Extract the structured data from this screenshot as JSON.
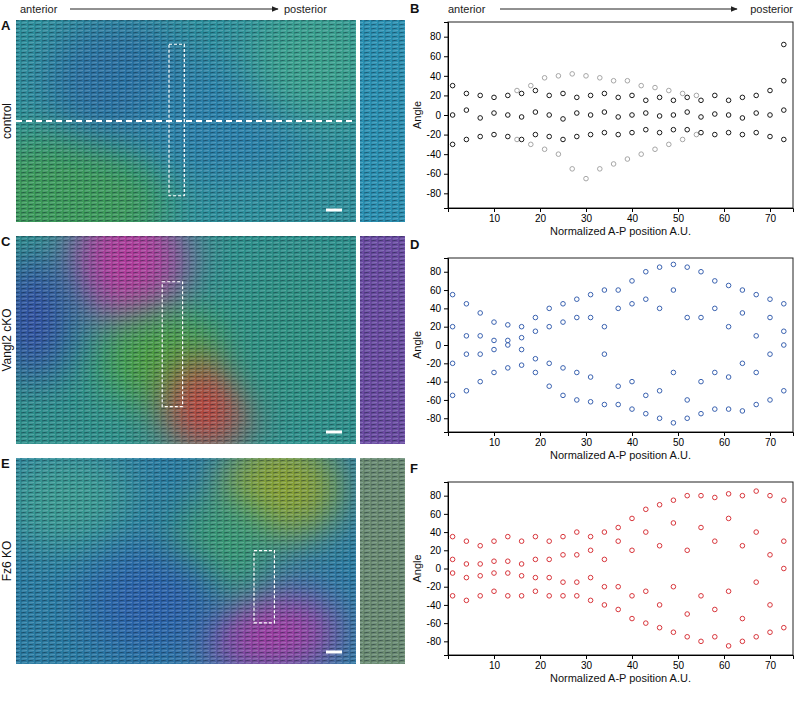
{
  "image_header": {
    "start": "anterior",
    "end": "posterior"
  },
  "image_panels": [
    {
      "panel_label": "A",
      "label": "control"
    },
    {
      "panel_label": "C",
      "label": "Vangl2 cKO"
    },
    {
      "panel_label": "E",
      "label": "Fz6 KO"
    }
  ],
  "chart_data": [
    {
      "type": "scatter",
      "panel_label": "B",
      "annotations": [
        "anterior",
        "posterior"
      ],
      "x_label": "Normalized A-P position A.U.",
      "y_label": "Angle",
      "xlim": [
        0,
        75
      ],
      "xticks": [
        10,
        20,
        30,
        40,
        50,
        60,
        70
      ],
      "ylim": [
        -95,
        95
      ],
      "yticks": [
        -80,
        -60,
        -40,
        -20,
        0,
        20,
        40,
        60,
        80
      ],
      "series": [
        {
          "color": "#a6a6a6",
          "x": [
            15,
            18,
            21,
            24,
            27,
            30,
            33,
            36,
            39,
            42,
            45,
            48,
            51,
            54,
            15,
            18,
            21,
            24,
            27,
            30,
            33,
            36,
            39,
            42,
            45,
            48,
            51,
            54
          ],
          "values": [
            25,
            30,
            38,
            40,
            42,
            40,
            38,
            35,
            35,
            30,
            28,
            25,
            22,
            20,
            -25,
            -30,
            -35,
            -40,
            -55,
            -65,
            -55,
            -50,
            -45,
            -40,
            -35,
            -30,
            -25,
            -20
          ]
        },
        {
          "color": "#1a1a1a",
          "x": [
            1,
            4,
            7,
            10,
            13,
            16,
            19,
            22,
            25,
            28,
            31,
            34,
            37,
            40,
            43,
            46,
            49,
            52,
            55,
            58,
            61,
            64,
            67,
            70,
            73,
            1,
            4,
            7,
            10,
            13,
            16,
            19,
            22,
            25,
            28,
            31,
            34,
            37,
            40,
            43,
            46,
            49,
            52,
            55,
            58,
            61,
            64,
            67,
            70,
            73,
            1,
            4,
            7,
            10,
            13,
            16,
            19,
            22,
            25,
            28,
            31,
            34,
            37,
            40,
            43,
            46,
            49,
            52,
            55,
            58,
            61,
            64,
            67,
            70,
            73,
            73
          ],
          "values": [
            30,
            22,
            20,
            18,
            20,
            22,
            25,
            20,
            22,
            18,
            20,
            22,
            18,
            20,
            15,
            18,
            15,
            18,
            15,
            20,
            15,
            18,
            20,
            25,
            35,
            -30,
            -25,
            -22,
            -20,
            -22,
            -25,
            -20,
            -22,
            -25,
            -22,
            -20,
            -18,
            -20,
            -18,
            -15,
            -18,
            -15,
            -15,
            -18,
            -20,
            -18,
            -20,
            -18,
            -22,
            -25,
            0,
            5,
            -3,
            2,
            0,
            -2,
            3,
            0,
            -4,
            2,
            0,
            3,
            -2,
            0,
            2,
            -1,
            0,
            3,
            -2,
            1,
            0,
            -3,
            2,
            0,
            5,
            72
          ]
        }
      ]
    },
    {
      "type": "scatter",
      "panel_label": "D",
      "x_label": "Normalized A-P position A.U.",
      "y_label": "Angle",
      "xlim": [
        0,
        75
      ],
      "xticks": [
        10,
        20,
        30,
        40,
        50,
        60,
        70
      ],
      "ylim": [
        -95,
        95
      ],
      "yticks": [
        -80,
        -60,
        -40,
        -20,
        0,
        20,
        40,
        60,
        80
      ],
      "series": [
        {
          "color": "#3a62b0",
          "x": [
            1,
            4,
            7,
            10,
            13,
            16,
            19,
            22,
            25,
            28,
            31,
            34,
            37,
            40,
            43,
            46,
            49,
            52,
            55,
            58,
            61,
            64,
            67,
            70,
            73,
            1,
            4,
            7,
            10,
            13,
            16,
            19,
            22,
            25,
            28,
            31,
            34,
            37,
            40,
            43,
            46,
            49,
            52,
            55,
            58,
            61,
            64,
            67,
            70,
            73,
            1,
            4,
            7,
            10,
            13,
            16,
            19,
            22,
            25,
            28,
            31,
            34,
            37,
            40,
            43,
            46,
            49,
            52,
            55,
            58,
            61,
            64,
            67,
            70,
            73,
            1,
            4,
            7,
            10,
            13,
            16,
            19,
            22,
            25,
            28,
            31,
            34,
            37,
            40,
            43,
            46,
            49,
            52,
            55,
            58,
            61,
            64,
            67,
            70,
            73
          ],
          "values": [
            55,
            45,
            35,
            25,
            22,
            20,
            30,
            40,
            45,
            50,
            55,
            60,
            60,
            70,
            80,
            85,
            88,
            85,
            80,
            70,
            65,
            60,
            55,
            50,
            45,
            -55,
            -50,
            -40,
            -30,
            -25,
            -22,
            -30,
            -45,
            -55,
            -60,
            -62,
            -65,
            -65,
            -70,
            -75,
            -80,
            -85,
            -80,
            -75,
            -70,
            -70,
            -72,
            -65,
            -60,
            -50,
            20,
            10,
            -10,
            5,
            0,
            -5,
            15,
            -20,
            25,
            -30,
            30,
            -10,
            40,
            -40,
            50,
            -50,
            60,
            -60,
            30,
            -30,
            20,
            -20,
            10,
            -10,
            0,
            -20,
            -10,
            10,
            -5,
            5,
            8,
            -15,
            20,
            -25,
            30,
            -35,
            20,
            -45,
            45,
            -55,
            40,
            -30,
            30,
            -40,
            40,
            -35,
            35,
            -30,
            30,
            15
          ]
        }
      ]
    },
    {
      "type": "scatter",
      "panel_label": "F",
      "x_label": "Normalized A-P position A.U.",
      "y_label": "Angle",
      "xlim": [
        0,
        75
      ],
      "xticks": [
        10,
        20,
        30,
        40,
        50,
        60,
        70
      ],
      "ylim": [
        -95,
        95
      ],
      "yticks": [
        -80,
        -60,
        -40,
        -20,
        0,
        20,
        40,
        60,
        80
      ],
      "series": [
        {
          "color": "#d8363c",
          "x": [
            1,
            4,
            7,
            10,
            13,
            16,
            19,
            22,
            25,
            28,
            31,
            34,
            37,
            40,
            43,
            46,
            49,
            52,
            55,
            58,
            61,
            64,
            67,
            70,
            73,
            1,
            4,
            7,
            10,
            13,
            16,
            19,
            22,
            25,
            28,
            31,
            34,
            37,
            40,
            43,
            46,
            49,
            52,
            55,
            58,
            61,
            64,
            67,
            70,
            73,
            1,
            4,
            7,
            10,
            13,
            16,
            19,
            22,
            25,
            28,
            31,
            34,
            37,
            40,
            43,
            46,
            49,
            52,
            55,
            58,
            61,
            64,
            67,
            70,
            73,
            1,
            4,
            7,
            10,
            13,
            16,
            19,
            22,
            25,
            28,
            31,
            34,
            37,
            40,
            43,
            46,
            49,
            52,
            55,
            58,
            61,
            64,
            67,
            70,
            73
          ],
          "values": [
            35,
            30,
            25,
            30,
            35,
            30,
            35,
            30,
            35,
            40,
            35,
            40,
            45,
            55,
            65,
            70,
            75,
            80,
            80,
            78,
            82,
            80,
            85,
            80,
            75,
            -30,
            -35,
            -30,
            -25,
            -30,
            -30,
            -25,
            -30,
            -30,
            -30,
            -35,
            -40,
            -45,
            -55,
            -60,
            -65,
            -70,
            -75,
            -80,
            -75,
            -85,
            -80,
            -75,
            -70,
            -65,
            10,
            -10,
            5,
            -5,
            8,
            -8,
            10,
            -10,
            15,
            -15,
            20,
            -20,
            30,
            -30,
            40,
            -40,
            50,
            -50,
            45,
            -45,
            55,
            -55,
            40,
            -40,
            30,
            -5,
            5,
            -8,
            8,
            -5,
            5,
            -10,
            10,
            -15,
            15,
            -10,
            10,
            -20,
            20,
            -25,
            25,
            -20,
            20,
            -30,
            30,
            -25,
            25,
            -15,
            15,
            0
          ]
        }
      ]
    }
  ]
}
